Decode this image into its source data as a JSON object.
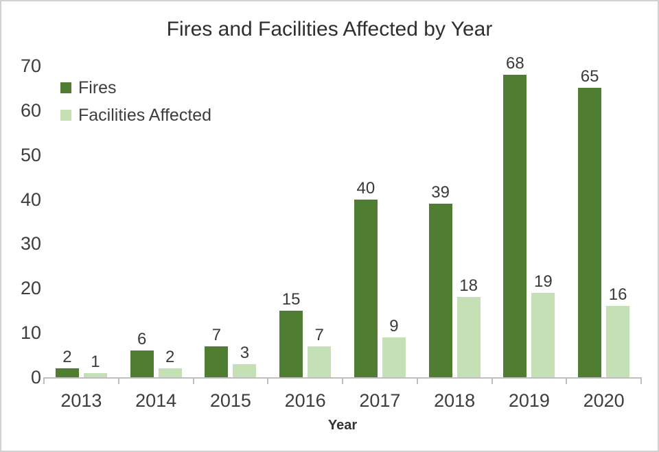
{
  "chart_data": {
    "type": "bar",
    "title": "Fires and Facilities Affected by Year",
    "categories": [
      "2013",
      "2014",
      "2015",
      "2016",
      "2017",
      "2018",
      "2019",
      "2020"
    ],
    "series": [
      {
        "name": "Fires",
        "color": "#4f7e33",
        "values": [
          2,
          6,
          7,
          15,
          40,
          39,
          68,
          65
        ]
      },
      {
        "name": "Facilities Affected",
        "color": "#c5e0b4",
        "values": [
          1,
          2,
          3,
          7,
          9,
          18,
          19,
          16
        ]
      }
    ],
    "value_labels": true,
    "xlabel": "Year",
    "ylabel": "",
    "ylim": [
      0,
      70
    ],
    "yticks": [
      0,
      10,
      20,
      30,
      40,
      50,
      60,
      70
    ],
    "grid": false,
    "legend_position": "inside-top-left",
    "colors": {
      "fires_bar": "#4f7e33",
      "facilities_bar": "#c5e0b4",
      "axis_line": "#bfbfbf",
      "text": "#3d3d3d",
      "title_text": "#2f2f2f",
      "background": "#ffffff",
      "frame_border": "#d2d2d2"
    }
  }
}
